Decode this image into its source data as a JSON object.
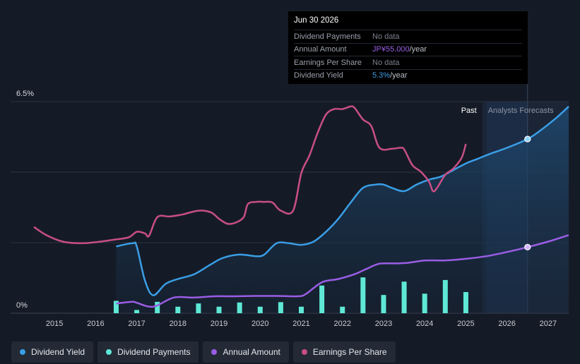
{
  "tooltip": {
    "date": "Jun 30 2026",
    "rows": [
      {
        "label": "Dividend Payments",
        "value": "No data",
        "unit": ""
      },
      {
        "label": "Annual Amount",
        "value": "JP¥55.000",
        "unit": "/year"
      },
      {
        "label": "Earnings Per Share",
        "value": "No data",
        "unit": ""
      },
      {
        "label": "Dividend Yield",
        "value": "5.3%",
        "unit": "/year"
      }
    ]
  },
  "colors": {
    "dividend_yield": "#3a9ee6",
    "dividend_payments": "#5ee8d5",
    "annual_amount": "#9b5de5",
    "eps": "#c84e86",
    "background": "#151b26",
    "forecast_region": "#1b2536"
  },
  "periods": {
    "past": "Past",
    "forecast": "Analysts Forecasts"
  },
  "chart_data": {
    "type": "line",
    "title": "",
    "ylim": [
      0,
      6.5
    ],
    "y_ticks": [
      {
        "value": 6.5,
        "label": "6.5%"
      },
      {
        "value": 0,
        "label": "0%"
      }
    ],
    "x_ticks": [
      "2015",
      "2016",
      "2017",
      "2018",
      "2019",
      "2020",
      "2021",
      "2022",
      "2023",
      "2024",
      "2025",
      "2026",
      "2027"
    ],
    "x_range": [
      2014.5,
      2027.5
    ],
    "forecast_start": 2025.4,
    "highlight_x": 2026.5,
    "series": [
      {
        "name": "Dividend Yield",
        "key": "dividend_yield",
        "type": "area",
        "points": [
          [
            2016.5,
            2.05
          ],
          [
            2016.9,
            2.15
          ],
          [
            2017.0,
            2.05
          ],
          [
            2017.2,
            1.0
          ],
          [
            2017.4,
            0.55
          ],
          [
            2017.7,
            0.9
          ],
          [
            2018.0,
            1.05
          ],
          [
            2018.4,
            1.2
          ],
          [
            2018.8,
            1.5
          ],
          [
            2019.1,
            1.7
          ],
          [
            2019.5,
            1.8
          ],
          [
            2019.9,
            1.75
          ],
          [
            2020.1,
            1.8
          ],
          [
            2020.4,
            2.15
          ],
          [
            2020.7,
            2.15
          ],
          [
            2021.0,
            2.1
          ],
          [
            2021.3,
            2.2
          ],
          [
            2021.6,
            2.5
          ],
          [
            2021.9,
            2.9
          ],
          [
            2022.2,
            3.4
          ],
          [
            2022.5,
            3.85
          ],
          [
            2022.8,
            3.95
          ],
          [
            2023.0,
            3.95
          ],
          [
            2023.2,
            3.85
          ],
          [
            2023.5,
            3.75
          ],
          [
            2023.8,
            3.95
          ],
          [
            2024.1,
            4.1
          ],
          [
            2024.4,
            4.2
          ],
          [
            2024.7,
            4.4
          ],
          [
            2025.0,
            4.6
          ],
          [
            2025.3,
            4.75
          ],
          [
            2025.6,
            4.9
          ],
          [
            2026.0,
            5.08
          ],
          [
            2026.5,
            5.35
          ],
          [
            2026.8,
            5.6
          ],
          [
            2027.2,
            6.0
          ],
          [
            2027.5,
            6.35
          ]
        ]
      },
      {
        "name": "Annual Amount",
        "key": "annual_amount",
        "type": "line",
        "points": [
          [
            2016.5,
            0.3
          ],
          [
            2016.9,
            0.35
          ],
          [
            2017.0,
            0.32
          ],
          [
            2017.4,
            0.2
          ],
          [
            2017.9,
            0.48
          ],
          [
            2018.4,
            0.48
          ],
          [
            2018.9,
            0.52
          ],
          [
            2019.4,
            0.52
          ],
          [
            2019.9,
            0.53
          ],
          [
            2020.4,
            0.53
          ],
          [
            2020.9,
            0.52
          ],
          [
            2021.1,
            0.58
          ],
          [
            2021.5,
            0.95
          ],
          [
            2021.9,
            1.05
          ],
          [
            2022.3,
            1.2
          ],
          [
            2022.6,
            1.37
          ],
          [
            2022.9,
            1.52
          ],
          [
            2023.3,
            1.53
          ],
          [
            2023.6,
            1.55
          ],
          [
            2024.0,
            1.62
          ],
          [
            2024.5,
            1.62
          ],
          [
            2025.0,
            1.67
          ],
          [
            2025.5,
            1.75
          ],
          [
            2026.0,
            1.88
          ],
          [
            2026.5,
            2.03
          ],
          [
            2027.0,
            2.2
          ],
          [
            2027.5,
            2.4
          ]
        ]
      },
      {
        "name": "Earnings Per Share",
        "key": "eps",
        "type": "line",
        "points": [
          [
            2014.5,
            2.65
          ],
          [
            2014.8,
            2.4
          ],
          [
            2015.2,
            2.2
          ],
          [
            2015.6,
            2.15
          ],
          [
            2016.0,
            2.18
          ],
          [
            2016.4,
            2.25
          ],
          [
            2016.8,
            2.33
          ],
          [
            2017.0,
            2.5
          ],
          [
            2017.2,
            2.45
          ],
          [
            2017.3,
            2.38
          ],
          [
            2017.5,
            2.95
          ],
          [
            2017.8,
            2.97
          ],
          [
            2018.1,
            3.03
          ],
          [
            2018.5,
            3.15
          ],
          [
            2018.8,
            3.1
          ],
          [
            2019.0,
            2.9
          ],
          [
            2019.2,
            2.75
          ],
          [
            2019.4,
            2.78
          ],
          [
            2019.6,
            2.95
          ],
          [
            2019.7,
            3.35
          ],
          [
            2019.9,
            3.42
          ],
          [
            2020.1,
            3.42
          ],
          [
            2020.3,
            3.4
          ],
          [
            2020.5,
            3.15
          ],
          [
            2020.8,
            3.15
          ],
          [
            2021.0,
            4.3
          ],
          [
            2021.2,
            4.85
          ],
          [
            2021.4,
            5.55
          ],
          [
            2021.6,
            6.1
          ],
          [
            2021.8,
            6.27
          ],
          [
            2022.0,
            6.27
          ],
          [
            2022.2,
            6.35
          ],
          [
            2022.3,
            6.3
          ],
          [
            2022.5,
            5.95
          ],
          [
            2022.7,
            5.75
          ],
          [
            2022.9,
            5.08
          ],
          [
            2023.2,
            5.05
          ],
          [
            2023.4,
            5.08
          ],
          [
            2023.5,
            5.03
          ],
          [
            2023.7,
            4.55
          ],
          [
            2023.9,
            4.35
          ],
          [
            2024.1,
            4.05
          ],
          [
            2024.2,
            3.75
          ],
          [
            2024.3,
            3.85
          ],
          [
            2024.5,
            4.25
          ],
          [
            2024.7,
            4.45
          ],
          [
            2024.9,
            4.78
          ],
          [
            2025.0,
            5.2
          ]
        ]
      },
      {
        "name": "Dividend Payments",
        "key": "dividend_payments",
        "type": "bar",
        "points": [
          [
            2016.5,
            0.38
          ],
          [
            2017.0,
            0.1
          ],
          [
            2017.5,
            0.35
          ],
          [
            2018.0,
            0.2
          ],
          [
            2018.5,
            0.3
          ],
          [
            2019.0,
            0.2
          ],
          [
            2019.5,
            0.33
          ],
          [
            2020.0,
            0.2
          ],
          [
            2020.5,
            0.34
          ],
          [
            2021.0,
            0.2
          ],
          [
            2021.5,
            0.85
          ],
          [
            2022.0,
            0.2
          ],
          [
            2022.5,
            1.1
          ],
          [
            2023.0,
            0.56
          ],
          [
            2023.5,
            0.97
          ],
          [
            2024.0,
            0.6
          ],
          [
            2024.5,
            1.02
          ],
          [
            2025.0,
            0.65
          ]
        ]
      }
    ],
    "markers": [
      {
        "series": "dividend_yield",
        "x": 2026.5,
        "y": 5.35
      },
      {
        "series": "annual_amount",
        "x": 2026.5,
        "y": 2.03
      }
    ],
    "legend": [
      {
        "name": "Dividend Yield",
        "key": "dividend_yield"
      },
      {
        "name": "Dividend Payments",
        "key": "dividend_payments"
      },
      {
        "name": "Annual Amount",
        "key": "annual_amount"
      },
      {
        "name": "Earnings Per Share",
        "key": "eps"
      }
    ]
  }
}
